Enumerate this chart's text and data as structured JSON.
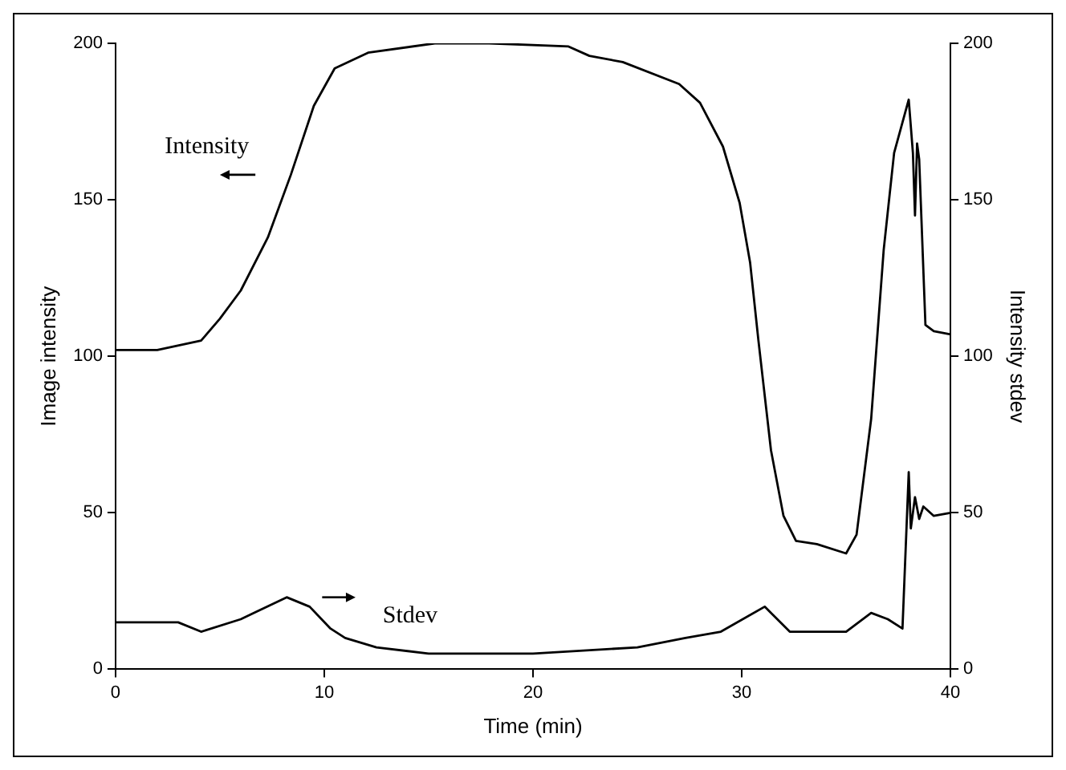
{
  "chart_data": {
    "type": "line",
    "xlabel": "Time (min)",
    "ylabel": "Image intensity",
    "y2label": "Intensity stdev",
    "xlim": [
      0,
      40
    ],
    "xticks": [
      0,
      10,
      20,
      30,
      40
    ],
    "ylim": [
      0,
      200
    ],
    "yticks": [
      0,
      50,
      100,
      150,
      200
    ],
    "y2lim": [
      0,
      200
    ],
    "y2ticks": [
      0,
      50,
      100,
      150,
      200
    ],
    "grid": false,
    "legend": false,
    "series": [
      {
        "name": "Intensity",
        "color": "#000000",
        "x": [
          0,
          2,
          4.1,
          5,
          6,
          7.3,
          8.4,
          9.5,
          10.5,
          12.1,
          15.3,
          17.9,
          21.7,
          22.7,
          24.3,
          27,
          28,
          29.1,
          29.9,
          30.4,
          30.8,
          31.4,
          32,
          32.6,
          33.6,
          35,
          35.5,
          36.2,
          36.8,
          37.3,
          38,
          38.2,
          38.3,
          38.4,
          38.5,
          38.8,
          39.2,
          40
        ],
        "values": [
          102,
          102,
          105,
          112,
          121,
          138,
          158,
          180,
          192,
          197,
          200,
          200,
          199,
          196,
          194,
          187,
          181,
          167,
          149,
          130,
          105,
          70,
          49,
          41,
          40,
          37,
          43,
          80,
          134,
          165,
          182,
          165,
          145,
          168,
          163,
          110,
          108,
          107
        ]
      },
      {
        "name": "Stdev",
        "color": "#000000",
        "axis": "y2",
        "x": [
          0,
          3,
          4.1,
          6,
          8.2,
          9.3,
          10.3,
          11,
          12.5,
          15,
          20,
          25,
          27.3,
          29,
          31.1,
          32.3,
          35,
          36.2,
          37,
          37.7,
          38,
          38.1,
          38.3,
          38.5,
          38.7,
          39.2,
          40
        ],
        "values": [
          15,
          15,
          12,
          16,
          23,
          20,
          13,
          10,
          7,
          5,
          5,
          7,
          10,
          12,
          20,
          12,
          12,
          18,
          16,
          13,
          63,
          45,
          55,
          48,
          52,
          49,
          50
        ]
      }
    ]
  }
}
